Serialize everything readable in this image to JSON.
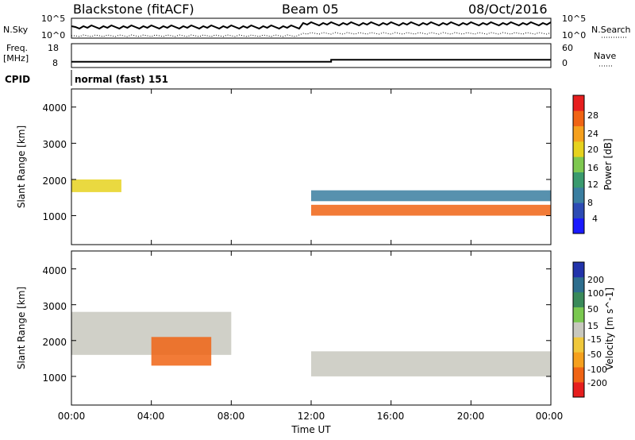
{
  "header": {
    "radar": "Blackstone (fitACF)",
    "beam": "Beam 05",
    "date": "08/Oct/2016"
  },
  "noise_panel": {
    "left_label": "N.Sky",
    "right_label": "N.Search",
    "ticks_left": [
      "10^5",
      "10^0"
    ],
    "ticks_right": [
      "10^5",
      "10^0"
    ]
  },
  "freq_panel": {
    "left_label_line1": "Freq.",
    "left_label_line2": "[MHz]",
    "right_label": "Nave",
    "ticks_left": [
      "18",
      "8"
    ],
    "ticks_right": [
      "60",
      "0"
    ]
  },
  "cpid": {
    "label": "CPID",
    "value": "normal (fast) 151"
  },
  "power_panel": {
    "ylabel": "Slant Range [km]",
    "yticks": [
      "4000",
      "3000",
      "2000",
      "1000"
    ],
    "colorbar_label": "Power [dB]",
    "colorbar_ticks": [
      "28",
      "24",
      "20",
      "16",
      "12",
      "8",
      "4"
    ],
    "colors": [
      "#1a1aff",
      "#2d4bb4",
      "#3a7ea0",
      "#3a9a6e",
      "#7ec850",
      "#e6d21e",
      "#f5a01e",
      "#f06414",
      "#e61e1e"
    ]
  },
  "velocity_panel": {
    "ylabel": "Slant Range [km]",
    "yticks": [
      "4000",
      "3000",
      "2000",
      "1000"
    ],
    "colorbar_label": "Velocity [m s^-1]",
    "colorbar_ticks": [
      "200",
      "100",
      "50",
      "15",
      "-15",
      "-50",
      "-100",
      "-200"
    ],
    "colors": [
      "#2233aa",
      "#2e6e8e",
      "#3a8a5a",
      "#7ac850",
      "#c8c8be",
      "#f0c83c",
      "#f5a01e",
      "#f06414",
      "#e61e1e"
    ]
  },
  "xaxis": {
    "label": "Time UT",
    "ticks": [
      "00:00",
      "04:00",
      "08:00",
      "12:00",
      "16:00",
      "20:00",
      "00:00"
    ]
  },
  "chart_data": {
    "type": "heatmap",
    "title": "Blackstone (fitACF)  Beam 05  08/Oct/2016",
    "xlabel": "Time UT",
    "ylabel": "Slant Range [km]",
    "x_range_hours": [
      0,
      24
    ],
    "y_range_km": [
      200,
      4500
    ],
    "frequency_mhz": {
      "before_1300": 10,
      "after_1300": 11
    },
    "power_bands_db": [
      {
        "time_start": "00:00",
        "time_end": "02:30",
        "range_start_km": 1650,
        "range_end_km": 2000,
        "power_db": 20
      },
      {
        "time_start": "12:00",
        "time_end": "24:00",
        "range_start_km": 1000,
        "range_end_km": 1300,
        "power_db": 28
      },
      {
        "time_start": "12:00",
        "time_end": "24:00",
        "range_start_km": 1400,
        "range_end_km": 1700,
        "power_db": 8
      }
    ],
    "velocity_bands": [
      {
        "time_start": "00:00",
        "time_end": "08:00",
        "range_start_km": 1600,
        "range_end_km": 2800,
        "velocity_ms": 0
      },
      {
        "time_start": "04:00",
        "time_end": "07:00",
        "range_start_km": 1300,
        "range_end_km": 2100,
        "velocity_ms": -100
      },
      {
        "time_start": "12:00",
        "time_end": "24:00",
        "range_start_km": 1000,
        "range_end_km": 1700,
        "velocity_ms": 0
      }
    ]
  }
}
